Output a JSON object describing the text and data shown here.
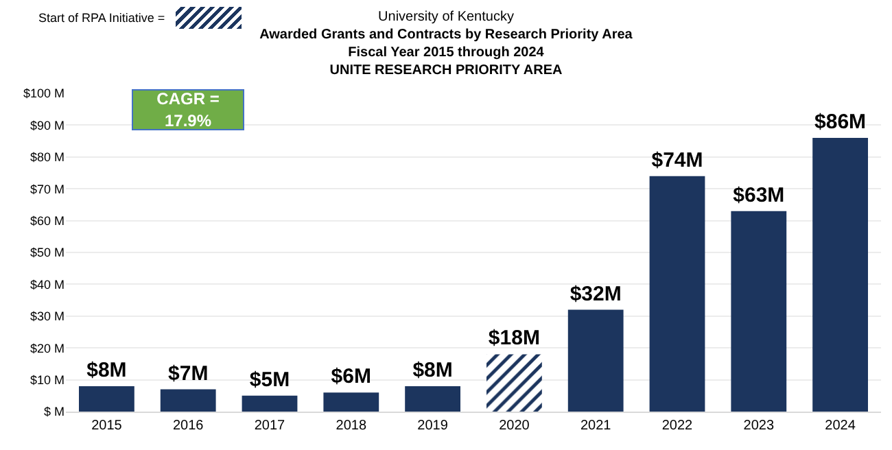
{
  "chart_data": {
    "type": "bar",
    "title": "University of Kentucky",
    "subtitle": "Awarded Grants and Contracts by Research Priority Area\nFiscal Year 2015 through 2024\nUNITE RESEARCH PRIORITY AREA",
    "categories": [
      "2015",
      "2016",
      "2017",
      "2018",
      "2019",
      "2020",
      "2021",
      "2022",
      "2023",
      "2024"
    ],
    "series": [
      {
        "color": "#1c355e",
        "values": [
          8,
          7,
          5,
          6,
          8,
          null,
          32,
          74,
          63,
          86
        ],
        "value_labels": [
          "$8M",
          "$7M",
          "$5M",
          "$6M",
          "$8M",
          null,
          "$32M",
          "$74M",
          "$63M",
          "$86M"
        ]
      },
      {
        "name": "Start of RPA Initiative =",
        "color": "#1c355e",
        "values": [
          null,
          null,
          null,
          null,
          null,
          18,
          null,
          null,
          null,
          null
        ],
        "value_labels": [
          null,
          null,
          null,
          null,
          null,
          "$18M",
          null,
          null,
          null,
          null
        ]
      }
    ],
    "ylim": [
      0,
      100
    ],
    "yticks": [
      {
        "value": 0,
        "label": "$ M"
      },
      {
        "value": 10,
        "label": "$10 M"
      },
      {
        "value": 20,
        "label": "$20 M"
      },
      {
        "value": 30,
        "label": "$30 M"
      },
      {
        "value": 40,
        "label": "$40 M"
      },
      {
        "value": 50,
        "label": "$50 M"
      },
      {
        "value": 60,
        "label": "$60 M"
      },
      {
        "value": 70,
        "label": "$70 M"
      },
      {
        "value": 80,
        "label": "$80 M"
      },
      {
        "value": 90,
        "label": "$90 M"
      },
      {
        "value": 100,
        "label": "$100 M"
      }
    ],
    "grid": "y",
    "legend": "top left",
    "annotations": [
      "CAGR =\n17.9%"
    ]
  }
}
